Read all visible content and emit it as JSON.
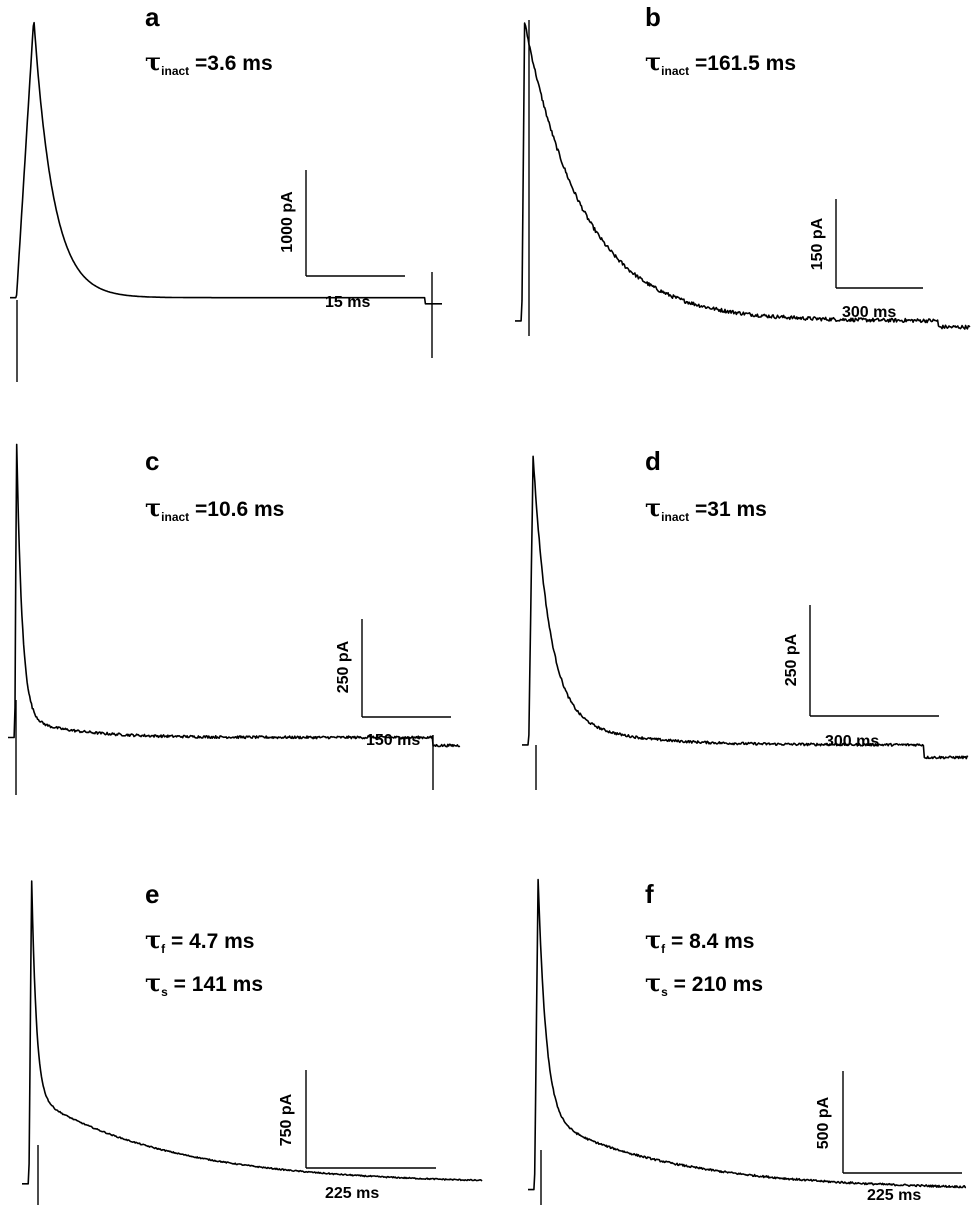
{
  "chart_data": [
    {
      "type": "line",
      "panel": "a",
      "annotations": [
        {
          "symbol": "τ",
          "sub": "inact",
          "text": " =3.6 ms"
        }
      ],
      "scale_bar": {
        "y": "1000 pA",
        "x": "15 ms"
      },
      "trace": {
        "baseline": 0.08,
        "peak": 1.0,
        "rise": 0.04,
        "decay": [
          {
            "amp": 0.92,
            "tau": 0.045
          }
        ],
        "step_at": 0.96,
        "step": -0.02,
        "noise": 0.0
      }
    },
    {
      "type": "line",
      "panel": "b",
      "annotations": [
        {
          "symbol": "τ",
          "sub": "inact",
          "text": " =161.5 ms"
        }
      ],
      "scale_bar": {
        "y": "150 pA",
        "x": "300 ms"
      },
      "trace": {
        "baseline": 0.06,
        "peak": 1.0,
        "rise": 0.006,
        "decay": [
          {
            "amp": 0.9,
            "tau": 0.13
          }
        ],
        "step_at": 0.93,
        "step": -0.02,
        "noise": 0.012
      }
    },
    {
      "type": "line",
      "panel": "c",
      "annotations": [
        {
          "symbol": "τ",
          "sub": "inact",
          "text": " =10.6 ms"
        }
      ],
      "scale_bar": {
        "y": "250 pA",
        "x": "150 ms"
      },
      "trace": {
        "baseline": 0.07,
        "peak": 1.0,
        "rise": 0.004,
        "decay": [
          {
            "amp": 0.85,
            "tau": 0.012
          },
          {
            "amp": 0.06,
            "tau": 0.12
          }
        ],
        "step_at": 0.94,
        "step": -0.025,
        "noise": 0.008
      }
    },
    {
      "type": "line",
      "panel": "d",
      "annotations": [
        {
          "symbol": "τ",
          "sub": "inact",
          "text": " =31 ms"
        }
      ],
      "scale_bar": {
        "y": "250 pA",
        "x": "300 ms"
      },
      "trace": {
        "baseline": 0.08,
        "peak": 1.0,
        "rise": 0.01,
        "decay": [
          {
            "amp": 0.78,
            "tau": 0.035
          },
          {
            "amp": 0.12,
            "tau": 0.14
          }
        ],
        "step_at": 0.9,
        "step": -0.04,
        "noise": 0.008
      }
    },
    {
      "type": "line",
      "panel": "e",
      "annotations": [
        {
          "symbol": "τ",
          "sub": "f",
          "text": " = 4.7 ms"
        },
        {
          "symbol": "τ",
          "sub": "s",
          "text": " = 141 ms"
        }
      ],
      "scale_bar": {
        "y": "750 pA",
        "x": "225 ms"
      },
      "trace": {
        "baseline": 0.02,
        "peak": 1.0,
        "rise": 0.006,
        "decay": [
          {
            "amp": 0.7,
            "tau": 0.01
          },
          {
            "amp": 0.28,
            "tau": 0.3
          }
        ],
        "step_at": 2.0,
        "step": 0,
        "noise": 0.004
      }
    },
    {
      "type": "line",
      "panel": "f",
      "annotations": [
        {
          "symbol": "τ",
          "sub": "f",
          "text": " = 8.4 ms"
        },
        {
          "symbol": "τ",
          "sub": "s",
          "text": " = 210 ms"
        }
      ],
      "scale_bar": {
        "y": "500 pA",
        "x": "225 ms"
      },
      "trace": {
        "baseline": 0.02,
        "peak": 1.0,
        "rise": 0.008,
        "decay": [
          {
            "amp": 0.75,
            "tau": 0.018
          },
          {
            "amp": 0.23,
            "tau": 0.3
          }
        ],
        "step_at": 2.0,
        "step": 0,
        "noise": 0.006
      }
    }
  ]
}
